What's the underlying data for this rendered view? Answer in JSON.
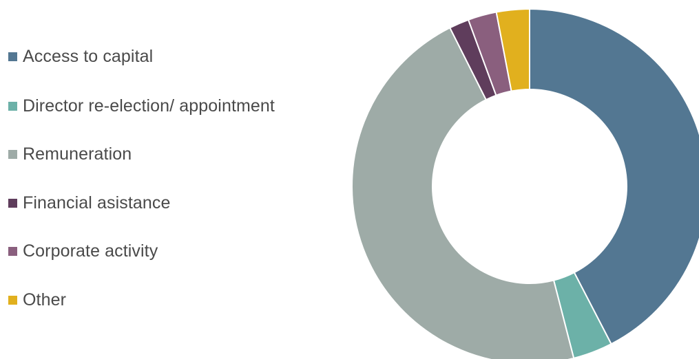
{
  "chart_data": {
    "type": "pie",
    "variant": "donut",
    "categories": [
      "Access to capital",
      "Director re-election/ appointment",
      "Remuneration",
      "Financial asistance",
      "Corporate activity",
      "Other"
    ],
    "values": [
      42.4,
      3.6,
      46.6,
      1.8,
      2.6,
      3.0
    ],
    "colors": [
      "#537792",
      "#6cb1a8",
      "#9eaba7",
      "#5f3d5c",
      "#8a5f7e",
      "#e1b01e"
    ],
    "legend_position": "left",
    "start_angle_deg": 0,
    "direction": "clockwise",
    "title": ""
  }
}
